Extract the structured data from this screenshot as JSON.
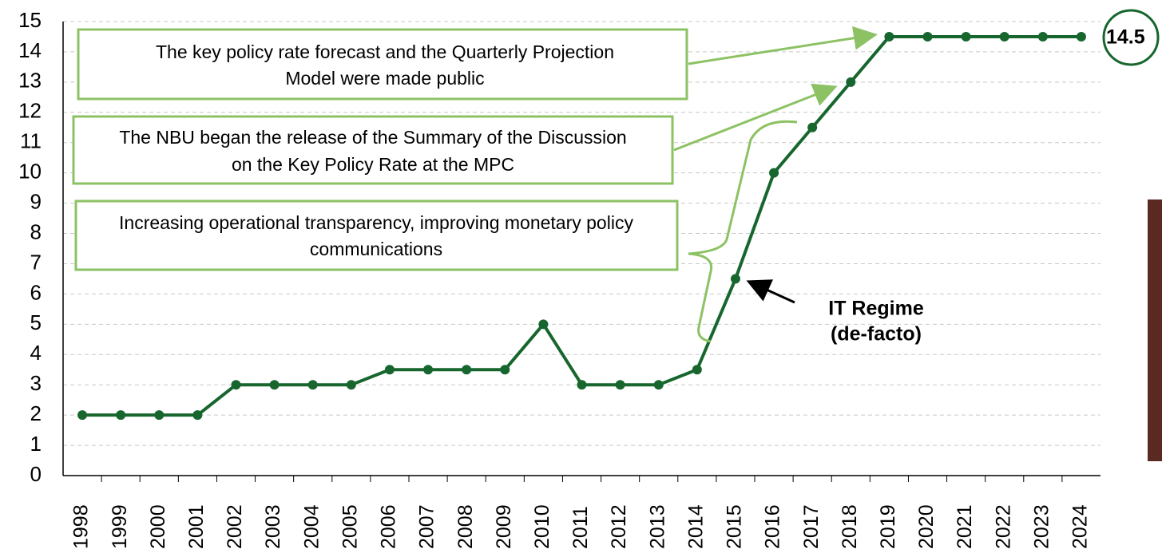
{
  "chart_data": {
    "type": "line",
    "categories": [
      "1998",
      "1999",
      "2000",
      "2001",
      "2002",
      "2003",
      "2004",
      "2005",
      "2006",
      "2007",
      "2008",
      "2009",
      "2010",
      "2011",
      "2012",
      "2013",
      "2014",
      "2015",
      "2016",
      "2017",
      "2018",
      "2019",
      "2020",
      "2021",
      "2022",
      "2023",
      "2024"
    ],
    "series": [
      {
        "color": "#17662e",
        "values": [
          2,
          2,
          2,
          2,
          3,
          3,
          3,
          3,
          3.5,
          3.5,
          3.5,
          3.5,
          5,
          3,
          3,
          3,
          3.5,
          6.5,
          10,
          11.5,
          13,
          14.5,
          14.5,
          14.5,
          14.5,
          14.5,
          14.5
        ]
      }
    ],
    "ylim": [
      0,
      15
    ],
    "yticks": [
      0,
      1,
      2,
      3,
      4,
      5,
      6,
      7,
      8,
      9,
      10,
      11,
      12,
      13,
      14,
      15
    ],
    "grid": true,
    "last_value_label": "14.5",
    "annotations": [
      {
        "lines": [
          "The key policy rate forecast and the Quarterly Projection",
          "Model were made public"
        ]
      },
      {
        "lines": [
          "The NBU began the release of the Summary of the Discussion",
          "on the Key Policy Rate at the MPC"
        ]
      },
      {
        "lines": [
          "Increasing operational transparency, improving monetary policy",
          "communications"
        ]
      },
      {
        "lines": [
          "IT Regime",
          "(de-facto)"
        ]
      }
    ]
  }
}
